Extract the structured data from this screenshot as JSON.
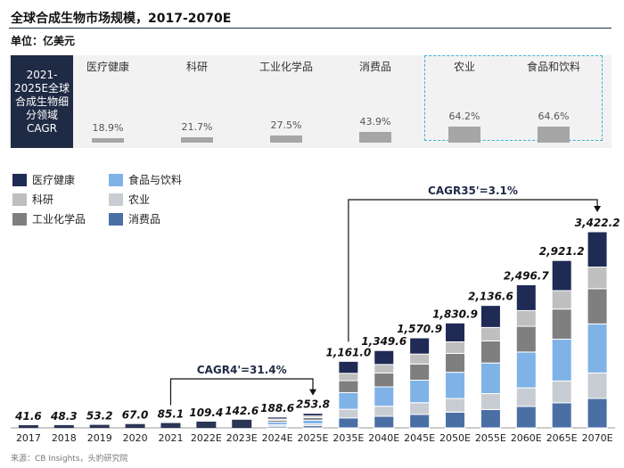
{
  "header": {
    "title": "全球合成生物市场规模，2017-2070E",
    "unit": "单位：亿美元"
  },
  "cagr_panel": {
    "label": "2021-2025E全球合成生物细分领域CAGR",
    "segments": [
      {
        "name": "医疗健康",
        "pct": "18.9%",
        "value": 18.9
      },
      {
        "name": "科研",
        "pct": "21.7%",
        "value": 21.7
      },
      {
        "name": "工业化学品",
        "pct": "27.5%",
        "value": 27.5
      },
      {
        "name": "消费品",
        "pct": "43.9%",
        "value": 43.9
      },
      {
        "name": "农业",
        "pct": "64.2%",
        "value": 64.2
      },
      {
        "name": "食品和饮料",
        "pct": "64.6%",
        "value": 64.6
      }
    ]
  },
  "source": "来源：CB Insights，头豹研究院",
  "chart_data": {
    "type": "bar",
    "stacked": true,
    "categories": [
      "2017",
      "2018",
      "2019",
      "2020",
      "2021",
      "2022E",
      "2023E",
      "2024E",
      "2025E",
      "2035E",
      "2040E",
      "2045E",
      "2050E",
      "2055E",
      "2060E",
      "2065E",
      "2070E"
    ],
    "totals": [
      41.6,
      48.3,
      53.2,
      67.0,
      85.1,
      109.4,
      142.6,
      188.6,
      253.8,
      1161.0,
      1349.6,
      1570.9,
      1830.9,
      2136.6,
      2496.7,
      2921.2,
      3422.2
    ],
    "total_labels": [
      "41.6",
      "48.3",
      "53.2",
      "67.0",
      "85.1",
      "109.4",
      "142.6",
      "188.6",
      "253.8",
      "1,161.0",
      "1,349.6",
      "1,570.9",
      "1,830.9",
      "2,136.6",
      "2,496.7",
      "2,921.2",
      "3,422.2"
    ],
    "series": [
      {
        "name": "消费品",
        "color": "#4a6fa5",
        "share": 0.15
      },
      {
        "name": "农业",
        "color": "#c8cdd3",
        "share": 0.13
      },
      {
        "name": "食品与饮料",
        "color": "#7fb3e8",
        "share": 0.25
      },
      {
        "name": "工业化学品",
        "color": "#7f7f7f",
        "share": 0.18
      },
      {
        "name": "科研",
        "color": "#bfbfbf",
        "share": 0.11
      },
      {
        "name": "医疗健康",
        "color": "#1f2a55",
        "share": 0.18
      }
    ],
    "legend_order": [
      "医疗健康",
      "食品与饮料",
      "科研",
      "农业",
      "工业化学品",
      "消费品"
    ],
    "annotations": [
      {
        "text": "CAGR4'=31.4%",
        "from": "2021",
        "to": "2025E"
      },
      {
        "text": "CAGR35'=3.1%",
        "from": "2035E",
        "to": "2070E"
      }
    ]
  }
}
